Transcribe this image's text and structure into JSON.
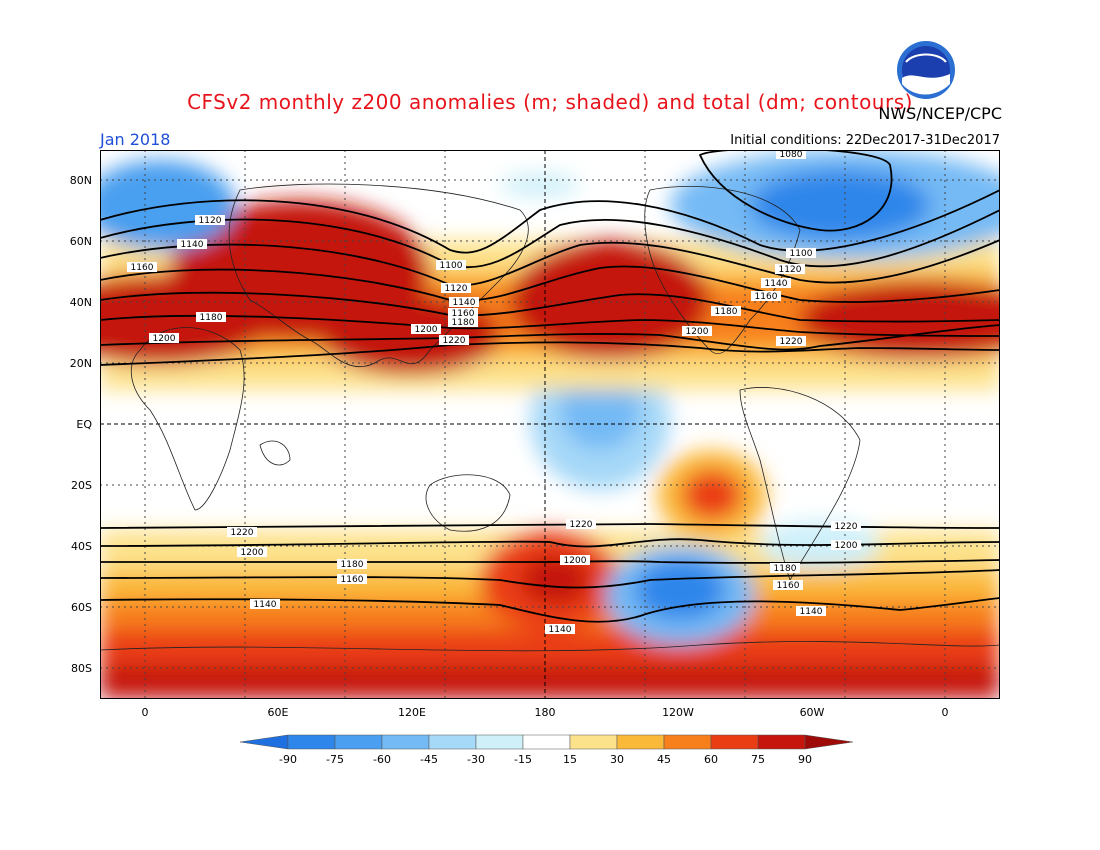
{
  "title": "CFSv2 monthly z200 anomalies (m; shaded) and total (dm; contours)",
  "agency": "NWS/NCEP/CPC",
  "month": "Jan 2018",
  "initial_conditions": "Initial conditions: 22Dec2017-31Dec2017",
  "logo_text": "NOAA",
  "lat_labels": [
    "80N",
    "60N",
    "40N",
    "20N",
    "EQ",
    "20S",
    "40S",
    "60S",
    "80S"
  ],
  "lon_labels": [
    "0",
    "60E",
    "120E",
    "180",
    "120W",
    "60W",
    "0"
  ],
  "colorbar": {
    "ticks": [
      "-90",
      "-75",
      "-60",
      "-45",
      "-30",
      "-15",
      "15",
      "30",
      "45",
      "60",
      "75",
      "90"
    ],
    "colors": [
      "#1e6fe0",
      "#2f86ea",
      "#4a9ff0",
      "#74baf5",
      "#a6d8f8",
      "#cff0f9",
      "#ffffff",
      "#fde28c",
      "#fbb93a",
      "#f77f1c",
      "#ea3d14",
      "#c5150d",
      "#9e0a08"
    ]
  },
  "contour_labels": [
    "1080",
    "1100",
    "1120",
    "1140",
    "1160",
    "1180",
    "1200",
    "1220"
  ],
  "colors": {
    "title": "#e8141c",
    "month": "#1f4fd8",
    "frame": "#000000"
  }
}
